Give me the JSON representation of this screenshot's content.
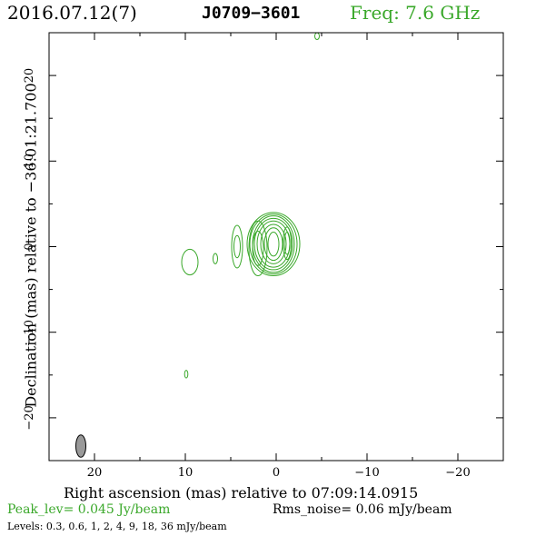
{
  "header": {
    "date": "2016.07.12(7)",
    "source": "J0709−3601",
    "freq": "Freq: 7.6 GHz"
  },
  "chart_data": {
    "type": "contour",
    "xlabel": "Right ascension (mas) relative to 07:09:14.0915",
    "ylabel": "Declination (mas) relative to −36:01:21.700",
    "xlim": [
      25,
      -25
    ],
    "ylim": [
      -25,
      25
    ],
    "x_ticks": [
      20,
      10,
      0,
      -10,
      -20
    ],
    "x_tick_labels": [
      "20",
      "10",
      "0",
      "−10",
      "−20"
    ],
    "y_ticks": [
      20,
      10,
      0,
      -10,
      -20
    ],
    "y_tick_labels": [
      "20",
      "10",
      "0",
      "−10",
      "−20"
    ],
    "contour_color": "#3aa82a",
    "beam": {
      "x": 21.5,
      "y": -23.3,
      "major_mas": 2.6,
      "minor_mas": 1.1,
      "pa_deg": 0,
      "fill": "#999999"
    },
    "components": [
      {
        "x": 0.3,
        "y": 0.3,
        "rx": [
          0.6,
          1.0,
          1.4,
          1.8,
          2.1,
          2.3,
          2.6,
          2.9
        ],
        "ry": [
          1.4,
          1.9,
          2.3,
          2.7,
          3.0,
          3.3,
          3.5,
          3.7
        ]
      },
      {
        "x": -1.2,
        "y": 0.4,
        "rx": [
          0.3,
          0.45
        ],
        "ry": [
          1.3,
          1.9
        ]
      },
      {
        "x": 2.0,
        "y": -0.2,
        "rx": [
          0.6,
          1.0
        ],
        "ry": [
          2.0,
          3.2
        ]
      },
      {
        "x": 4.3,
        "y": 0.0,
        "rx": [
          0.35,
          0.6
        ],
        "ry": [
          1.3,
          2.5
        ]
      },
      {
        "x": 6.7,
        "y": -1.4,
        "rx": [
          0.25
        ],
        "ry": [
          0.6
        ]
      },
      {
        "x": 9.5,
        "y": -1.8,
        "rx": [
          0.9
        ],
        "ry": [
          1.5
        ]
      },
      {
        "x": 9.9,
        "y": -14.9,
        "rx": [
          0.18
        ],
        "ry": [
          0.45
        ]
      },
      {
        "x": -4.5,
        "y": 24.6,
        "rx": [
          0.25
        ],
        "ry": [
          0.4
        ]
      }
    ]
  },
  "footer": {
    "peak": "Peak_lev=  0.045 Jy/beam",
    "rms": "Rms_noise= 0.06 mJy/beam",
    "levels": "Levels: 0.3, 0.6,    1,    2,    4,    9,   18,   36 mJy/beam"
  }
}
